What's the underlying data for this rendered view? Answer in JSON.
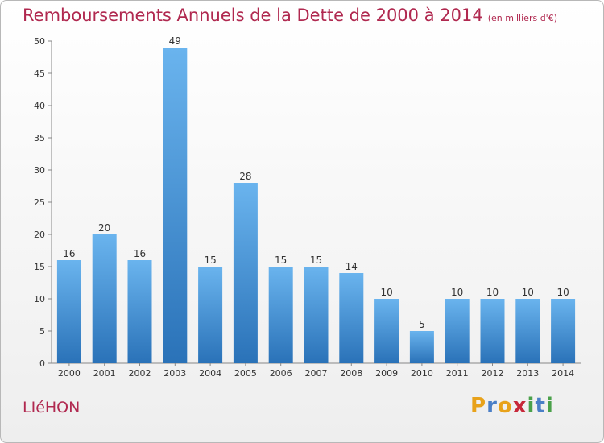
{
  "title": "Remboursements Annuels de la Dette de 2000 à 2014",
  "subtitle": "(en milliers d'€)",
  "commune": "LIéHON",
  "logo": {
    "letters": [
      "P",
      "r",
      "o",
      "x",
      "i",
      "t",
      "i"
    ],
    "colors": [
      "#e8a21a",
      "#4a7fc7",
      "#e8a21a",
      "#c7283a",
      "#4aa14a",
      "#4a7fc7",
      "#4aa14a"
    ]
  },
  "colors": {
    "title": "#b0284f",
    "bar_light": "#6ab4ee",
    "bar_dark": "#2a72b8"
  },
  "chart_data": {
    "type": "bar",
    "title": "Remboursements Annuels de la Dette de 2000 à 2014",
    "subtitle": "(en milliers d'€)",
    "categories": [
      "2000",
      "2001",
      "2002",
      "2003",
      "2004",
      "2005",
      "2006",
      "2007",
      "2008",
      "2009",
      "2010",
      "2011",
      "2012",
      "2013",
      "2014"
    ],
    "values": [
      16,
      20,
      16,
      49,
      15,
      28,
      15,
      15,
      14,
      10,
      5,
      10,
      10,
      10,
      10
    ],
    "xlabel": "",
    "ylabel": "",
    "ylim": [
      0,
      50
    ],
    "yticks": [
      0,
      5,
      10,
      15,
      20,
      25,
      30,
      35,
      40,
      45,
      50
    ],
    "grid": false,
    "data_labels": true
  }
}
